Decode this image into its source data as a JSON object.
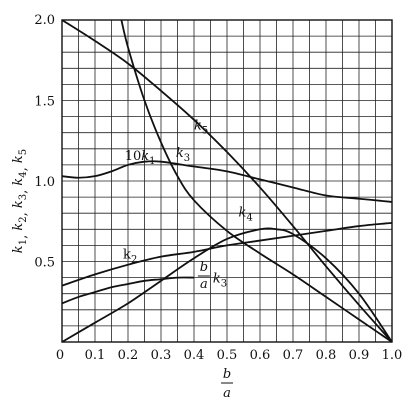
{
  "chart_data": {
    "type": "line",
    "xlabel": {
      "num": "b",
      "den": "a"
    },
    "ylabel": "k1, k2, k3, k4, k5",
    "xlim": [
      0,
      1.0
    ],
    "ylim": [
      0,
      2.0
    ],
    "grid": true,
    "x_ticks": [
      "0",
      "0.1",
      "0.2",
      "0.3",
      "0.4",
      "0.5",
      "0.6",
      "0.7",
      "0.8",
      "0.9",
      "1.0"
    ],
    "y_ticks": [
      "0.5",
      "1.0",
      "1.5",
      "2.0"
    ],
    "series": [
      {
        "name": "k5",
        "label": "k5",
        "x": [
          0,
          0.1,
          0.2,
          0.3,
          0.4,
          0.5,
          0.6,
          0.7,
          0.8,
          0.9,
          1.0
        ],
        "y": [
          2.0,
          1.87,
          1.73,
          1.56,
          1.38,
          1.18,
          0.96,
          0.72,
          0.47,
          0.23,
          0.0
        ]
      },
      {
        "name": "k3",
        "label": "k3",
        "x": [
          0.18,
          0.2,
          0.25,
          0.3,
          0.35,
          0.4,
          0.5,
          0.6,
          0.7,
          0.8,
          0.9,
          1.0
        ],
        "y": [
          2.0,
          1.83,
          1.5,
          1.24,
          1.03,
          0.88,
          0.69,
          0.55,
          0.42,
          0.28,
          0.14,
          0.0
        ]
      },
      {
        "name": "10k1",
        "label_num": "10",
        "label_sym": "k1",
        "x": [
          0,
          0.05,
          0.1,
          0.15,
          0.2,
          0.25,
          0.3,
          0.4,
          0.5,
          0.6,
          0.7,
          0.8,
          0.9,
          1.0
        ],
        "y": [
          1.03,
          1.02,
          1.03,
          1.06,
          1.1,
          1.12,
          1.12,
          1.09,
          1.06,
          1.01,
          0.96,
          0.91,
          0.89,
          0.87
        ]
      },
      {
        "name": "k4",
        "label": "k4",
        "x": [
          0,
          0.1,
          0.2,
          0.3,
          0.4,
          0.5,
          0.6,
          0.65,
          0.7,
          0.8,
          0.9,
          1.0
        ],
        "y": [
          0.0,
          0.12,
          0.24,
          0.38,
          0.52,
          0.64,
          0.7,
          0.7,
          0.67,
          0.52,
          0.3,
          0.0
        ]
      },
      {
        "name": "k2",
        "label": "k2",
        "x": [
          0,
          0.1,
          0.2,
          0.3,
          0.4,
          0.5,
          0.6,
          0.7,
          0.8,
          0.9,
          1.0
        ],
        "y": [
          0.35,
          0.42,
          0.48,
          0.53,
          0.56,
          0.6,
          0.63,
          0.66,
          0.69,
          0.72,
          0.74
        ]
      },
      {
        "name": "b/a k3",
        "label_num": "b",
        "label_den": "a",
        "label_sym": "k3",
        "x": [
          0,
          0.05,
          0.1,
          0.15,
          0.2,
          0.25,
          0.3,
          0.35,
          0.4
        ],
        "y": [
          0.24,
          0.28,
          0.31,
          0.34,
          0.36,
          0.38,
          0.39,
          0.4,
          0.4
        ]
      }
    ]
  }
}
